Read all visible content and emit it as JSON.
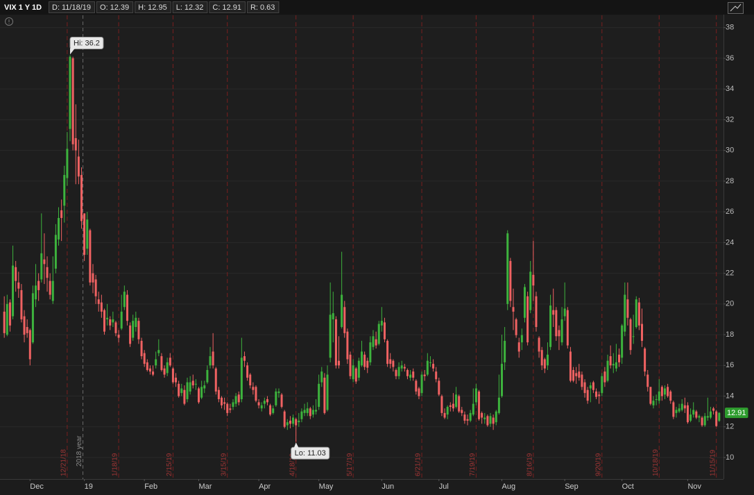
{
  "header": {
    "symbol": "VIX 1 Y 1D",
    "fields": [
      {
        "key": "D:",
        "value": "11/18/19"
      },
      {
        "key": "O:",
        "value": 12.39
      },
      {
        "key": "H:",
        "value": 12.95
      },
      {
        "key": "L:",
        "value": 12.32
      },
      {
        "key": "C:",
        "value": 12.91
      },
      {
        "key": "R:",
        "value": 0.63
      }
    ]
  },
  "chart_data": {
    "type": "candlestick",
    "up_color": "#3db33d",
    "down_color": "#f06262",
    "grid": true,
    "ylim": [
      8.6,
      38.8
    ],
    "yticks": [
      10,
      12,
      14,
      16,
      18,
      20,
      22,
      24,
      26,
      28,
      30,
      32,
      34,
      36,
      38
    ],
    "xlim": [
      -1.5,
      251.5
    ],
    "xticks": [
      {
        "value": 9,
        "label": "Dec"
      },
      {
        "value": 28,
        "label": "19"
      },
      {
        "value": 49,
        "label": "Feb"
      },
      {
        "value": 68,
        "label": "Mar"
      },
      {
        "value": 89,
        "label": "Apr"
      },
      {
        "value": 110,
        "label": "May"
      },
      {
        "value": 132,
        "label": "Jun"
      },
      {
        "value": 152,
        "label": "Jul"
      },
      {
        "value": 174,
        "label": "Aug"
      },
      {
        "value": 196,
        "label": "Sep"
      },
      {
        "value": 216,
        "label": "Oct"
      },
      {
        "value": 239,
        "label": "Nov"
      }
    ],
    "expirations": [
      {
        "value": 22,
        "label": "12/21/18"
      },
      {
        "value": 40,
        "label": "1/18/19"
      },
      {
        "value": 59,
        "label": "2/15/19"
      },
      {
        "value": 78,
        "label": "3/15/19"
      },
      {
        "value": 102,
        "label": "4/18/19"
      },
      {
        "value": 122,
        "label": "5/17/19"
      },
      {
        "value": 146,
        "label": "6/21/19"
      },
      {
        "value": 165,
        "label": "7/19/19"
      },
      {
        "value": 185,
        "label": "8/16/19"
      },
      {
        "value": 209,
        "label": "9/20/19"
      },
      {
        "value": 229,
        "label": "10/18/19"
      },
      {
        "value": 249,
        "label": "11/15/19"
      }
    ],
    "year_marker": {
      "value": 27.5,
      "label": "2018 year"
    },
    "high_label": {
      "value": 36.2,
      "label": "Hi: 36.2"
    },
    "low_label": {
      "value": 11.03,
      "label": "Lo: 11.03"
    },
    "open": [
      19.5,
      18.0,
      20.1,
      19.2,
      22.4,
      21.4,
      20.9,
      19.2,
      18.5,
      18.3,
      17.5,
      20.3,
      21.5,
      21.6,
      22.9,
      22.4,
      21.5,
      20.2,
      22.3,
      24.2,
      26.1,
      26.4,
      28.2,
      31.4,
      36.0,
      30.8,
      29.6,
      28.4,
      25.9,
      23.6,
      24.8,
      22.0,
      21.6,
      20.3,
      20.1,
      19.6,
      19.0,
      19.0,
      18.8,
      18.8,
      18.0,
      18.4,
      19.8,
      20.6,
      18.6,
      17.8,
      18.5,
      18.9,
      17.6,
      16.8,
      16.2,
      15.8,
      15.6,
      16.0,
      16.8,
      16.6,
      15.8,
      15.5,
      16.5,
      15.8,
      15.2,
      14.8,
      14.2,
      14.4,
      13.8,
      14.3,
      15.0,
      14.8,
      14.5,
      13.9,
      14.5,
      14.9,
      16.0,
      16.9,
      15.8,
      14.4,
      13.9,
      13.6,
      13.5,
      13.2,
      13.3,
      13.5,
      14.1,
      13.8,
      16.6,
      16.0,
      15.4,
      14.6,
      14.6,
      13.6,
      13.2,
      13.5,
      13.8,
      13.4,
      12.9,
      13.4,
      14.2,
      14.1,
      13.0,
      12.1,
      12.4,
      12.2,
      12.5,
      12.3,
      12.5,
      12.9,
      12.9,
      13.2,
      12.8,
      13.0,
      13.3,
      14.9,
      15.2,
      13.1,
      16.5,
      19.0,
      19.0,
      16.3,
      18.5,
      19.8,
      18.2,
      16.7,
      15.1,
      15.8,
      15.2,
      16.0,
      16.7,
      16.3,
      16.2,
      17.2,
      17.7,
      17.4,
      18.6,
      18.8,
      17.6,
      16.4,
      16.3,
      15.7,
      15.3,
      15.8,
      15.9,
      15.7,
      15.2,
      15.6,
      15.0,
      14.5,
      14.2,
      15.4,
      15.4,
      16.2,
      16.1,
      15.6,
      15.0,
      14.0,
      12.9,
      12.8,
      13.4,
      13.5,
      13.3,
      14.0,
      13.1,
      12.8,
      12.5,
      12.4,
      12.8,
      13.6,
      14.3,
      12.9,
      12.5,
      12.7,
      12.2,
      12.6,
      12.3,
      12.9,
      14.0,
      16.2,
      20.0,
      22.8,
      19.8,
      19.0,
      17.5,
      17.5,
      19.1,
      20.5,
      19.6,
      21.9,
      20.5,
      17.8,
      17.0,
      16.4,
      16.0,
      17.2,
      19.6,
      19.6,
      18.3,
      17.5,
      19.2,
      19.6,
      16.9,
      15.7,
      15.5,
      15.6,
      15.4,
      14.9,
      14.4,
      14.5,
      14.9,
      14.3,
      14.1,
      14.2,
      15.6,
      15.0,
      16.6,
      16.0,
      15.8,
      16.7,
      16.5,
      18.2,
      20.3,
      19.0,
      17.9,
      18.5,
      20.1,
      18.7,
      17.1,
      15.4,
      14.6,
      13.4,
      13.8,
      13.7,
      14.6,
      14.1,
      14.6,
      14.3,
      13.6,
      12.9,
      13.0,
      13.1,
      13.4,
      13.4,
      12.4,
      12.8,
      13.0,
      12.6,
      12.6,
      12.1,
      12.6,
      12.6,
      13.2,
      13.0,
      12.39
    ],
    "high": [
      20.5,
      20.6,
      20.3,
      23.8,
      22.8,
      22.1,
      21.3,
      19.6,
      19.0,
      18.4,
      21.2,
      22.6,
      22.0,
      25.9,
      24.6,
      23.1,
      22.0,
      23.1,
      25.2,
      26.3,
      26.8,
      29.0,
      31.2,
      36.2,
      36.1,
      33.0,
      30.7,
      28.9,
      25.9,
      26.0,
      24.9,
      22.6,
      21.9,
      20.8,
      20.6,
      19.7,
      20.0,
      19.2,
      19.5,
      18.9,
      18.3,
      20.6,
      21.2,
      20.9,
      18.8,
      19.3,
      19.5,
      19.1,
      17.8,
      17.0,
      16.4,
      16.0,
      16.0,
      16.9,
      17.7,
      16.8,
      16.0,
      16.5,
      16.8,
      15.9,
      15.5,
      15.0,
      14.8,
      14.7,
      15.2,
      15.3,
      15.4,
      15.1,
      14.6,
      15.0,
      15.0,
      16.0,
      17.2,
      18.1,
      15.9,
      14.6,
      14.0,
      13.9,
      13.6,
      13.5,
      13.8,
      14.2,
      14.3,
      17.8,
      16.9,
      16.2,
      15.5,
      14.9,
      14.7,
      13.8,
      13.6,
      13.9,
      14.0,
      13.5,
      13.4,
      14.5,
      14.5,
      14.2,
      13.1,
      12.5,
      12.7,
      12.8,
      12.6,
      12.9,
      13.2,
      13.5,
      13.6,
      13.3,
      13.4,
      13.8,
      15.4,
      15.9,
      15.5,
      16.0,
      21.4,
      20.8,
      19.2,
      17.9,
      23.4,
      20.2,
      18.4,
      16.9,
      16.4,
      15.9,
      16.5,
      17.6,
      16.9,
      16.5,
      17.9,
      18.3,
      18.2,
      18.9,
      19.8,
      19.1,
      17.7,
      16.8,
      16.4,
      15.8,
      16.2,
      16.3,
      16.1,
      15.8,
      15.7,
      15.8,
      15.1,
      14.6,
      15.6,
      15.7,
      16.8,
      16.6,
      16.4,
      15.9,
      15.2,
      14.1,
      13.2,
      13.4,
      13.6,
      14.2,
      14.6,
      14.1,
      13.3,
      13.0,
      12.8,
      13.1,
      14.5,
      14.8,
      14.4,
      13.0,
      12.9,
      12.8,
      12.9,
      12.8,
      13.1,
      15.4,
      18.0,
      18.5,
      24.8,
      23.0,
      21.0,
      19.1,
      17.8,
      18.4,
      21.3,
      20.8,
      22.8,
      24.1,
      20.8,
      17.9,
      17.2,
      16.5,
      17.5,
      20.6,
      21.0,
      19.8,
      18.6,
      19.8,
      21.4,
      19.8,
      17.2,
      15.9,
      15.9,
      16.1,
      15.6,
      15.1,
      14.6,
      14.9,
      15.0,
      14.5,
      14.3,
      15.5,
      15.9,
      16.7,
      17.3,
      16.8,
      17.4,
      17.1,
      18.7,
      21.4,
      21.4,
      19.1,
      19.3,
      20.5,
      20.4,
      19.7,
      17.2,
      15.7,
      14.6,
      14.0,
      14.1,
      15.1,
      14.7,
      14.7,
      14.8,
      14.4,
      13.7,
      13.3,
      13.5,
      13.8,
      13.9,
      13.6,
      13.2,
      13.6,
      13.1,
      12.8,
      12.7,
      12.9,
      13.9,
      13.3,
      13.3,
      13.1,
      12.95
    ],
    "low": [
      17.8,
      17.9,
      18.2,
      19.0,
      20.8,
      20.4,
      18.8,
      17.5,
      17.8,
      16.0,
      17.4,
      19.8,
      20.2,
      21.4,
      21.3,
      20.8,
      20.3,
      20.0,
      22.0,
      23.8,
      24.1,
      25.3,
      27.7,
      30.6,
      30.0,
      27.8,
      27.8,
      24.9,
      22.8,
      23.2,
      21.2,
      20.7,
      20.0,
      19.5,
      19.1,
      18.0,
      18.6,
      18.3,
      18.5,
      17.9,
      17.5,
      18.3,
      19.6,
      18.6,
      17.2,
      17.6,
      18.2,
      17.4,
      16.4,
      15.9,
      15.6,
      15.4,
      15.3,
      15.8,
      16.6,
      15.6,
      15.2,
      15.3,
      15.9,
      14.8,
      14.6,
      13.9,
      14.0,
      13.4,
      13.6,
      14.1,
      14.5,
      14.4,
      13.5,
      13.8,
      14.2,
      14.8,
      15.8,
      15.8,
      14.1,
      13.6,
      13.2,
      13.1,
      12.7,
      12.9,
      13.1,
      13.3,
      13.4,
      13.6,
      15.9,
      15.0,
      14.5,
      14.1,
      13.6,
      13.2,
      13.0,
      13.2,
      13.4,
      12.7,
      12.8,
      13.3,
      13.9,
      13.2,
      11.9,
      11.8,
      11.9,
      12.0,
      11.03,
      12.0,
      12.3,
      12.7,
      12.7,
      12.5,
      12.6,
      12.8,
      13.1,
      14.6,
      12.8,
      13.0,
      16.2,
      17.5,
      15.8,
      15.8,
      18.4,
      17.8,
      16.1,
      15.1,
      14.9,
      14.8,
      15.0,
      15.9,
      15.7,
      15.5,
      16.0,
      17.0,
      17.1,
      17.3,
      18.2,
      17.5,
      15.9,
      15.8,
      15.6,
      15.1,
      15.1,
      15.6,
      15.6,
      15.1,
      15.0,
      15.0,
      14.1,
      13.8,
      14.0,
      15.0,
      15.3,
      15.9,
      15.6,
      14.9,
      14.0,
      12.7,
      12.5,
      12.5,
      13.0,
      13.0,
      13.2,
      12.9,
      12.7,
      12.2,
      12.1,
      12.3,
      12.7,
      13.4,
      12.4,
      12.2,
      12.2,
      12.0,
      12.0,
      11.8,
      12.1,
      12.8,
      13.9,
      15.7,
      19.6,
      19.8,
      18.3,
      17.8,
      16.5,
      17.0,
      18.8,
      17.3,
      19.4,
      20.2,
      18.2,
      16.5,
      15.7,
      15.5,
      15.7,
      17.0,
      18.5,
      17.6,
      17.0,
      17.3,
      18.9,
      17.1,
      14.9,
      14.9,
      14.8,
      15.0,
      14.4,
      13.9,
      13.5,
      13.6,
      14.2,
      13.8,
      13.5,
      14.0,
      14.6,
      14.9,
      15.8,
      15.5,
      15.6,
      15.9,
      16.1,
      17.9,
      18.6,
      16.7,
      17.4,
      18.4,
      18.3,
      17.2,
      15.3,
      14.3,
      13.4,
      13.2,
      13.4,
      13.5,
      13.7,
      13.8,
      13.9,
      13.5,
      12.5,
      12.6,
      12.9,
      13.0,
      12.9,
      12.2,
      12.3,
      12.6,
      12.5,
      12.3,
      12.0,
      12.0,
      12.4,
      12.5,
      12.8,
      12.0,
      12.32
    ],
    "close": [
      18.1,
      20.0,
      18.6,
      22.5,
      21.5,
      21.0,
      19.0,
      18.0,
      18.1,
      16.4,
      20.7,
      21.2,
      20.9,
      23.3,
      22.6,
      21.7,
      20.6,
      21.5,
      24.5,
      25.6,
      25.6,
      28.4,
      30.1,
      36.1,
      30.4,
      30.0,
      28.3,
      25.4,
      23.2,
      25.5,
      21.4,
      21.4,
      20.5,
      20.0,
      19.5,
      18.2,
      19.1,
      18.6,
      19.0,
      18.1,
      17.8,
      19.5,
      20.8,
      18.9,
      17.4,
      18.9,
      19.1,
      17.7,
      16.6,
      16.1,
      15.7,
      15.6,
      15.4,
      16.4,
      17.0,
      15.7,
      15.4,
      16.2,
      16.0,
      14.9,
      14.9,
      14.0,
      14.5,
      13.5,
      14.9,
      14.9,
      14.7,
      14.8,
      13.6,
      14.6,
      14.7,
      15.7,
      16.6,
      16.0,
      14.3,
      13.8,
      13.4,
      13.5,
      12.9,
      13.1,
      13.6,
      14.0,
      13.6,
      16.5,
      16.3,
      15.2,
      14.7,
      14.4,
      13.7,
      13.4,
      13.4,
      13.7,
      13.6,
      12.8,
      13.2,
      14.3,
      14.3,
      13.3,
      12.0,
      12.3,
      12.2,
      12.6,
      12.1,
      12.4,
      13.0,
      13.1,
      13.2,
      12.7,
      13.1,
      13.1,
      14.8,
      15.6,
      12.9,
      15.4,
      19.3,
      19.4,
      16.0,
      16.0,
      20.6,
      18.1,
      16.4,
      15.3,
      16.0,
      14.95,
      16.3,
      16.9,
      15.9,
      15.85,
      17.5,
      17.9,
      17.3,
      18.7,
      18.9,
      17.7,
      16.1,
      16.1,
      15.9,
      15.3,
      15.9,
      16.0,
      15.8,
      15.3,
      15.4,
      15.2,
      14.3,
      14.0,
      15.4,
      15.3,
      16.3,
      16.2,
      15.8,
      15.1,
      14.1,
      12.9,
      12.6,
      13.3,
      13.3,
      13.2,
      14.1,
      13.0,
      12.9,
      12.4,
      12.4,
      12.9,
      13.5,
      14.5,
      12.5,
      12.6,
      12.6,
      12.1,
      12.7,
      12.2,
      13.0,
      13.9,
      16.1,
      17.6,
      24.6,
      20.2,
      19.5,
      17.97,
      16.9,
      17.97,
      21.1,
      17.5,
      22.1,
      21.2,
      18.5,
      16.9,
      16.0,
      15.8,
      16.7,
      19.9,
      19.3,
      17.9,
      17.9,
      19.0,
      19.7,
      17.3,
      15.0,
      15.0,
      15.3,
      15.2,
      14.6,
      14.2,
      13.7,
      14.7,
      14.4,
      13.95,
      14.0,
      15.3,
      14.9,
      16.3,
      16.0,
      16.1,
      16.2,
      16.2,
      18.6,
      20.6,
      19.1,
      17.0,
      17.9,
      20.3,
      18.6,
      17.6,
      15.6,
      14.6,
      13.5,
      13.7,
      13.8,
      14.3,
      14.0,
      14.5,
      14.0,
      13.7,
      12.65,
      13.1,
      13.2,
      13.5,
      13.2,
      12.3,
      12.8,
      13.1,
      12.6,
      12.7,
      12.1,
      12.7,
      12.7,
      13.0,
      13.05,
      12.05,
      12.91
    ]
  }
}
